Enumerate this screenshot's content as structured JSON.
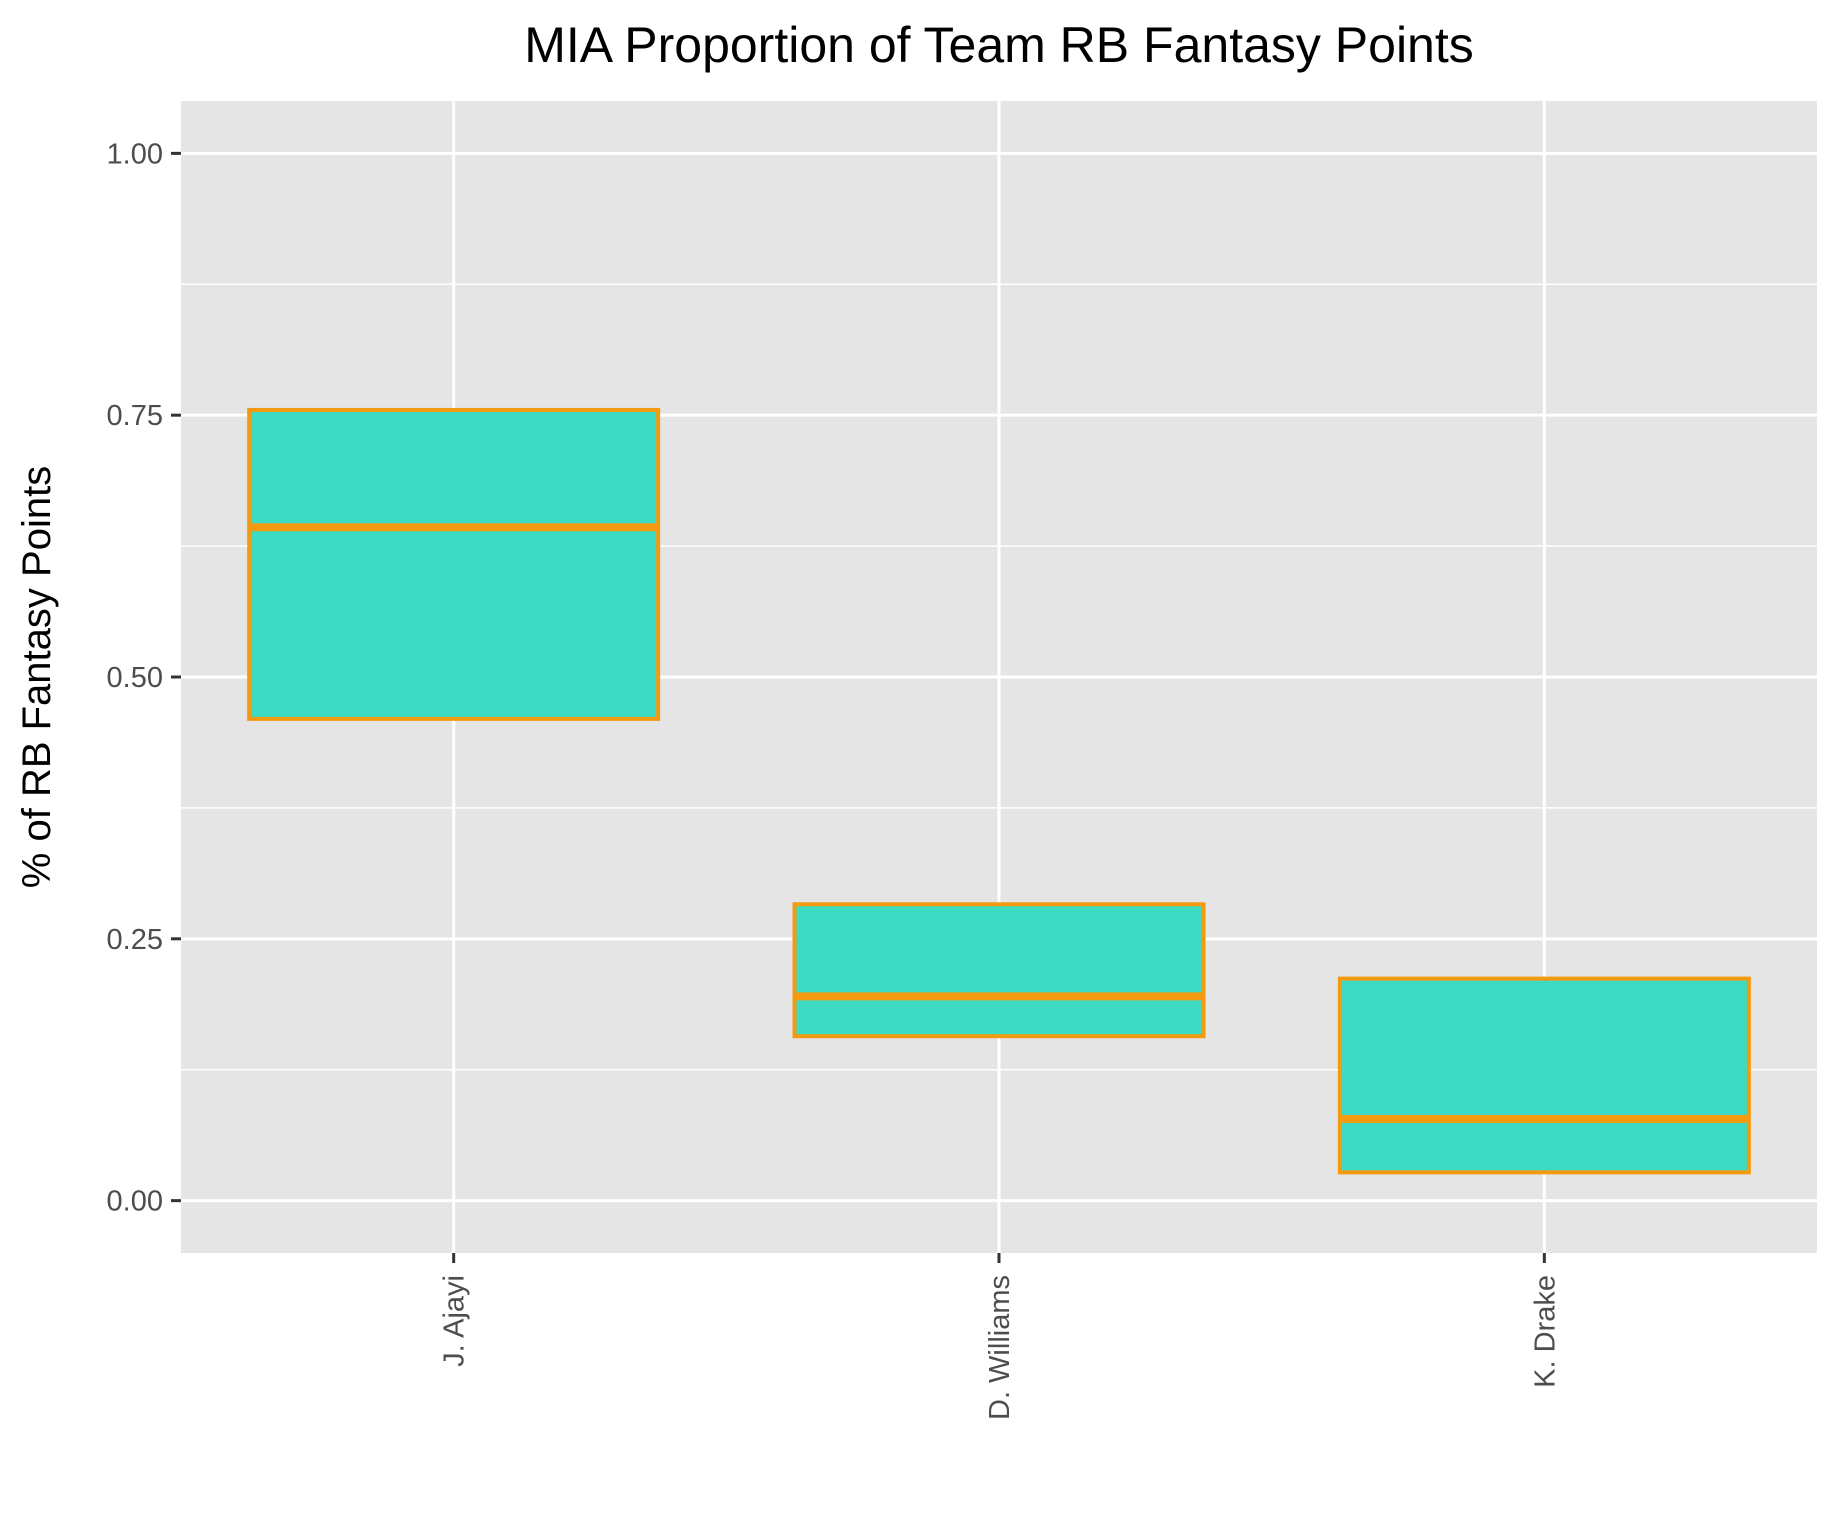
{
  "chart_data": {
    "type": "boxplot",
    "title": "MIA Proportion of Team RB Fantasy Points",
    "xlabel": "",
    "ylabel": "% of RB Fantasy Points",
    "ylim": [
      -0.05,
      1.05
    ],
    "y_ticks": [
      0.0,
      0.25,
      0.5,
      0.75,
      1.0
    ],
    "y_tick_labels": [
      "0.00",
      "0.25",
      "0.50",
      "0.75",
      "1.00"
    ],
    "categories": [
      "J. Ajayi",
      "D. Williams",
      "K. Drake"
    ],
    "boxes": [
      {
        "category": "J. Ajayi",
        "q1": 0.46,
        "median": 0.643,
        "q3": 0.755
      },
      {
        "category": "D. Williams",
        "q1": 0.157,
        "median": 0.195,
        "q3": 0.283
      },
      {
        "category": "K. Drake",
        "q1": 0.027,
        "median": 0.078,
        "q3": 0.212
      }
    ],
    "grid": true,
    "x_tick_label_rotation": "vertical",
    "colors": {
      "panel_background": "#e5e5e5",
      "grid": "#ffffff",
      "box_fill": "#3ddbc3",
      "box_outline": "#f39a10",
      "median_line": "#f39a10",
      "tick": "#333333",
      "tick_label": "#4d4d4d",
      "text": "#000000"
    }
  }
}
